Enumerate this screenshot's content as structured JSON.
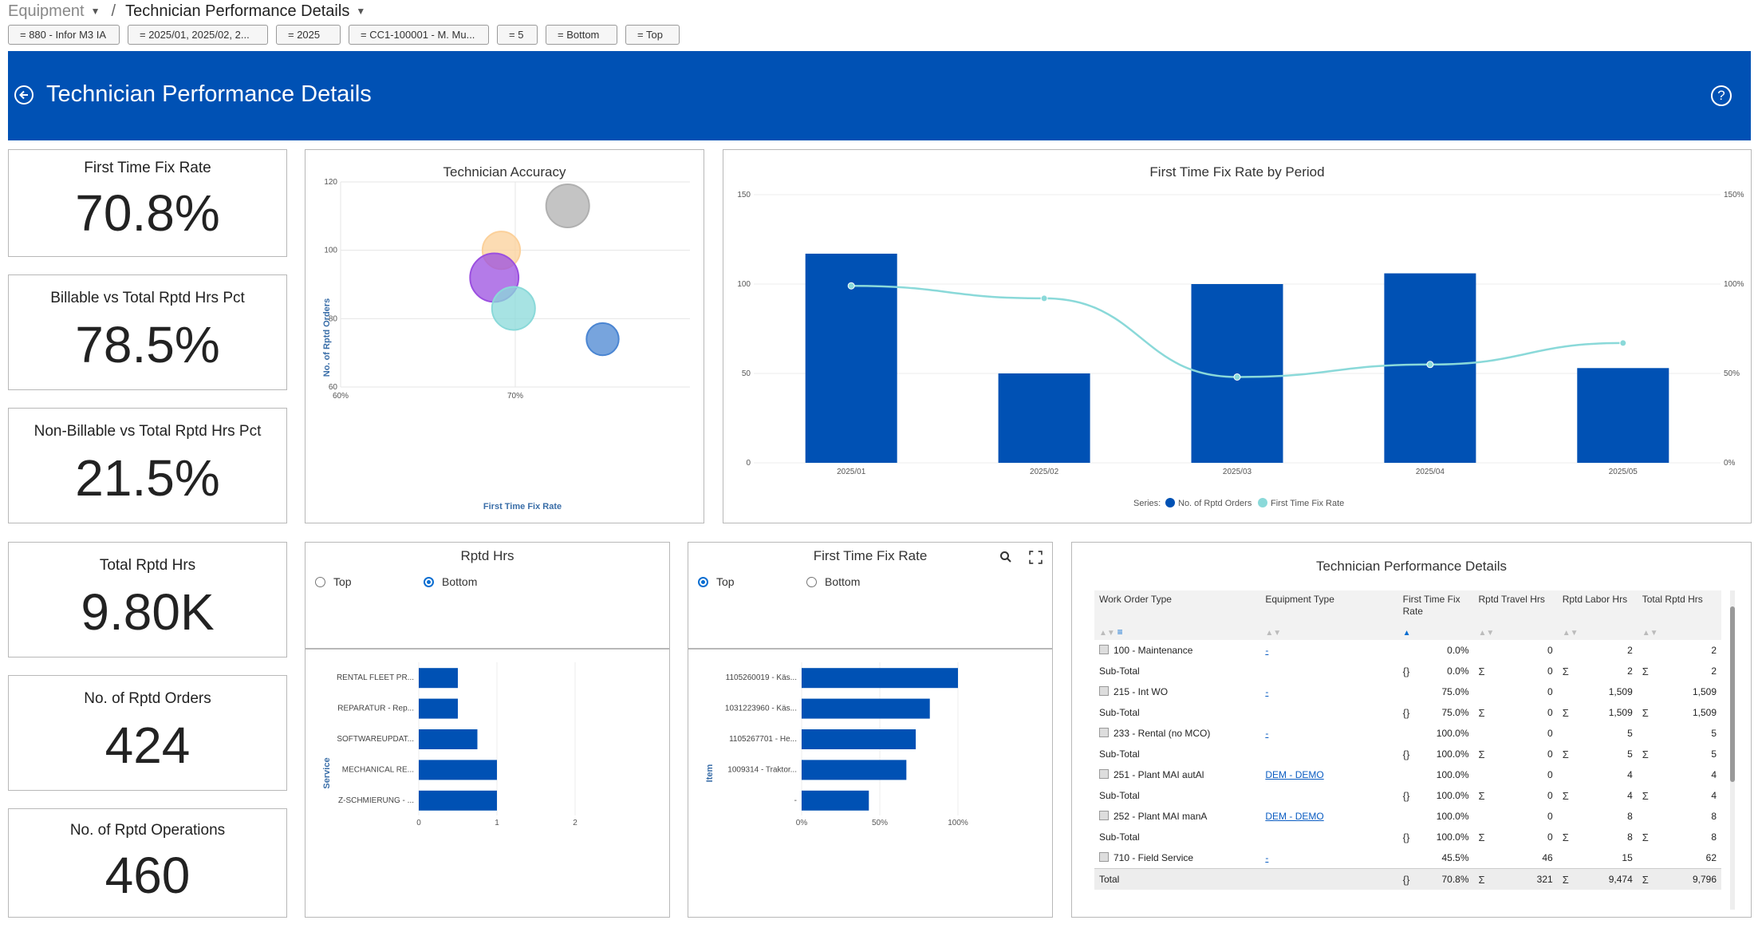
{
  "breadcrumb": {
    "root": "Equipment",
    "current": "Technician Performance Details"
  },
  "filters": [
    "= 880 - Infor M3 IA",
    "= 2025/01, 2025/02, 2...",
    "= 2025",
    "= CC1-100001 - M. Mu...",
    "= 5",
    "= Bottom",
    "= Top"
  ],
  "header": {
    "title": "Technician Performance Details"
  },
  "kpis": [
    {
      "label": "First Time Fix Rate",
      "value": "70.8%"
    },
    {
      "label": "Billable vs Total Rptd Hrs Pct",
      "value": "78.5%"
    },
    {
      "label": "Non-Billable vs Total Rptd Hrs Pct",
      "value": "21.5%"
    },
    {
      "label": "Total Rptd Hrs",
      "value": "9.80K"
    },
    {
      "label": "No. of Rptd Orders",
      "value": "424"
    },
    {
      "label": "No. of Rptd Operations",
      "value": "460"
    }
  ],
  "bubble": {
    "title": "Technician Accuracy",
    "xlabel": "First Time Fix Rate",
    "ylabel": "No. of Rptd Orders",
    "xticks": [
      "60%",
      "70%"
    ],
    "yticks": [
      "60",
      "80",
      "100",
      "120"
    ],
    "colors": [
      "#b0b0b0",
      "#fbd09a",
      "#9b4fe0",
      "#8ad9d9",
      "#4a85d2"
    ]
  },
  "period": {
    "title": "First Time Fix Rate by Period",
    "yticks_left": [
      "0",
      "50",
      "100",
      "150"
    ],
    "yticks_right": [
      "0%",
      "50%",
      "100%",
      "150%"
    ],
    "legend_prefix": "Series:",
    "legend": [
      "No. of Rptd Orders",
      "First Time Fix Rate"
    ]
  },
  "rptd": {
    "title": "Rptd Hrs",
    "opt_top": "Top",
    "opt_bottom": "Bottom",
    "ylabel": "Service",
    "xticks": [
      "0",
      "1",
      "2"
    ]
  },
  "ftfr": {
    "title": "First Time Fix Rate",
    "opt_top": "Top",
    "opt_bottom": "Bottom",
    "ylabel": "Item",
    "xticks": [
      "0%",
      "50%",
      "100%"
    ]
  },
  "table": {
    "title": "Technician Performance Details",
    "columns": [
      "Work Order Type",
      "Equipment Type",
      "First Time Fix Rate",
      "Rptd Travel Hrs",
      "Rptd Labor Hrs",
      "Total Rptd Hrs"
    ],
    "rows": [
      {
        "type": "100 - Maintenance",
        "equip": "-",
        "ftfr": "0.0%",
        "travel": "0",
        "labor": "2",
        "total": "2"
      },
      {
        "type": "215 - Int WO",
        "equip": "-",
        "ftfr": "75.0%",
        "travel": "0",
        "labor": "1,509",
        "total": "1,509"
      },
      {
        "type": "233 - Rental (no MCO)",
        "equip": "-",
        "ftfr": "100.0%",
        "travel": "0",
        "labor": "5",
        "total": "5"
      },
      {
        "type": "251 - Plant MAI autAl",
        "equip": "DEM - DEMO",
        "ftfr": "100.0%",
        "travel": "0",
        "labor": "4",
        "total": "4"
      },
      {
        "type": "252 - Plant MAI manA",
        "equip": "DEM - DEMO",
        "ftfr": "100.0%",
        "travel": "0",
        "labor": "8",
        "total": "8"
      },
      {
        "type": "710 - Field Service",
        "equip": "-",
        "ftfr": "45.5%",
        "travel": "46",
        "labor": "15",
        "total": "62"
      }
    ],
    "subtotal_label": "Sub-Total",
    "total": {
      "label": "Total",
      "ftfr": "70.8%",
      "travel": "321",
      "labor": "9,474",
      "total": "9,796"
    }
  },
  "chart_data": [
    {
      "type": "scatter",
      "title": "Technician Accuracy",
      "xlabel": "First Time Fix Rate",
      "ylabel": "No. of Rptd Orders",
      "xlim": [
        0.6,
        0.8
      ],
      "ylim": [
        60,
        120
      ],
      "series": [
        {
          "values": [
            {
              "x": 0.73,
              "y": 113,
              "size": 5
            },
            {
              "x": 0.692,
              "y": 100,
              "size": 4
            },
            {
              "x": 0.688,
              "y": 92,
              "size": 6
            },
            {
              "x": 0.699,
              "y": 83,
              "size": 5
            },
            {
              "x": 0.75,
              "y": 74,
              "size": 3
            }
          ]
        }
      ]
    },
    {
      "type": "bar",
      "title": "First Time Fix Rate by Period",
      "categories": [
        "2025/01",
        "2025/02",
        "2025/03",
        "2025/04",
        "2025/05"
      ],
      "ylim": [
        0,
        150
      ],
      "series": [
        {
          "name": "No. of Rptd Orders",
          "values": [
            117,
            50,
            100,
            106,
            53
          ]
        },
        {
          "name": "First Time Fix Rate",
          "axis": "right",
          "values": [
            0.99,
            0.92,
            0.48,
            0.55,
            0.67
          ]
        }
      ]
    },
    {
      "type": "bar",
      "title": "Rptd Hrs",
      "ylabel": "Service",
      "categories": [
        "RENTAL FLEET PR...",
        "REPARATUR - Rep...",
        "SOFTWAREUPDAT...",
        "MECHANICAL RE...",
        "Z-SCHMIERUNG - ..."
      ],
      "values": [
        0.5,
        0.5,
        0.75,
        1.0,
        1.0
      ],
      "xlim": [
        0,
        2
      ]
    },
    {
      "type": "bar",
      "title": "First Time Fix Rate",
      "ylabel": "Item",
      "categories": [
        "1105260019 - Käs...",
        "1031223960 - Käs...",
        "1105267701 - He...",
        "1009314 - Traktor...",
        "-"
      ],
      "values": [
        1.0,
        0.82,
        0.73,
        0.67,
        0.43
      ],
      "xlim": [
        0,
        1
      ]
    }
  ]
}
